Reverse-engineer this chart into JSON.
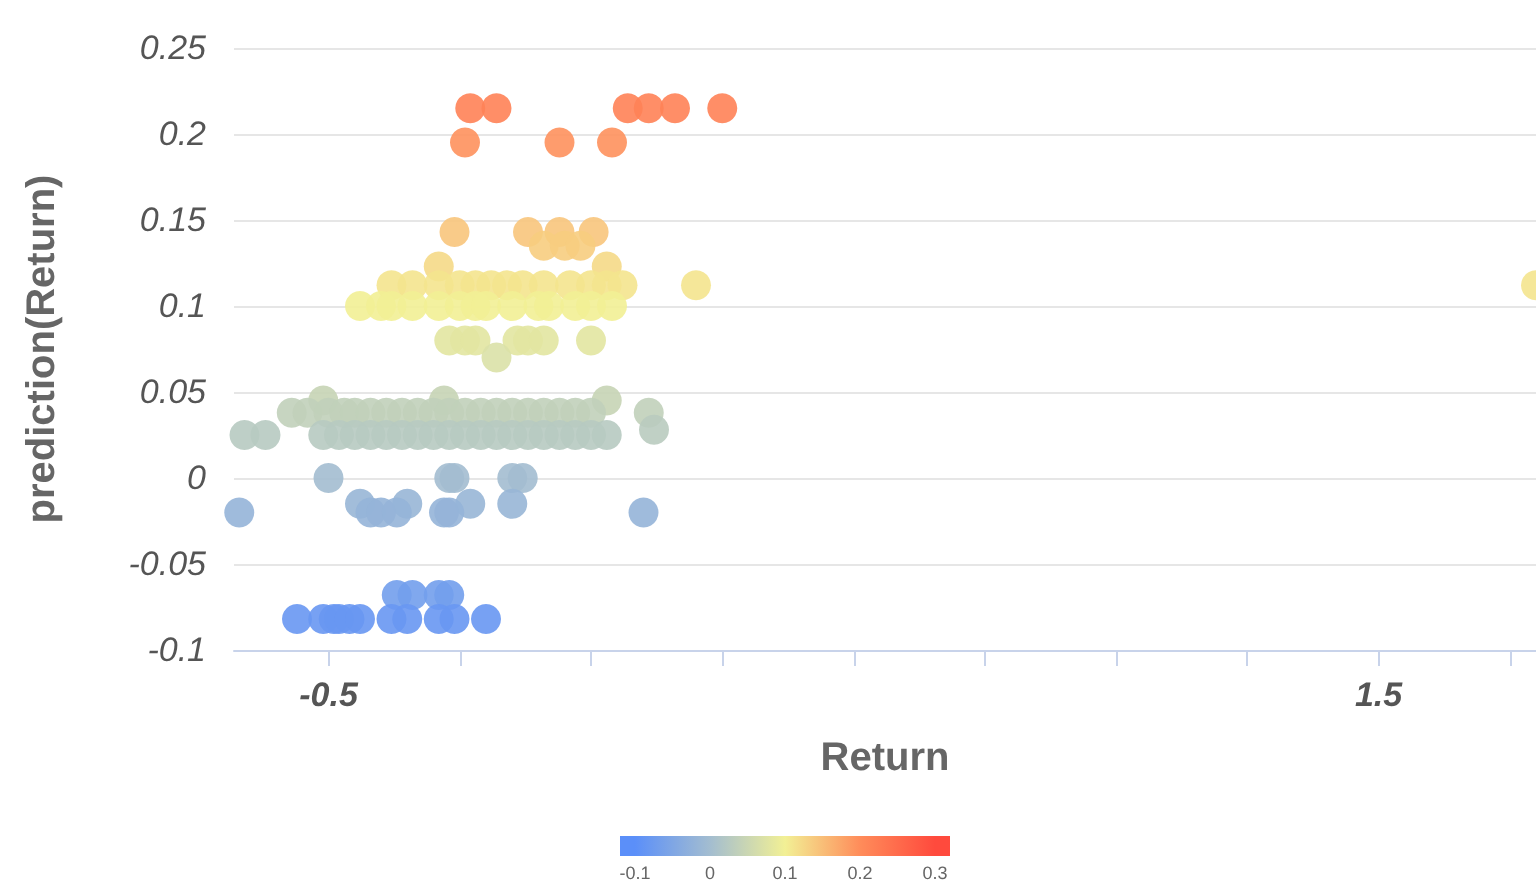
{
  "chart_data": {
    "type": "scatter",
    "xlabel": "Return",
    "ylabel": "prediction(Return)",
    "xlim": [
      -0.68,
      1.8
    ],
    "ylim": [
      -0.1,
      0.25
    ],
    "xticks": [
      {
        "value": -0.5,
        "label": "-0.5"
      },
      {
        "value": -0.25,
        "label": null
      },
      {
        "value": 0,
        "label": null
      },
      {
        "value": 0.25,
        "label": null
      },
      {
        "value": 0.5,
        "label": null
      },
      {
        "value": 0.75,
        "label": null
      },
      {
        "value": 1,
        "label": null
      },
      {
        "value": 1.25,
        "label": null
      },
      {
        "value": 1.5,
        "label": "1.5"
      },
      {
        "value": 1.75,
        "label": null
      }
    ],
    "yticks": [
      -0.1,
      -0.05,
      0,
      0.05,
      0.1,
      0.15,
      0.2,
      0.25
    ],
    "clim": [
      -0.12,
      0.32
    ],
    "cticks": [
      -0.1,
      0,
      0.1,
      0.2,
      0.3
    ],
    "grid": "y",
    "marker": "circle",
    "x": [
      -0.23,
      -0.18,
      0.07,
      0.11,
      0.16,
      0.25,
      -0.24,
      -0.06,
      0.04,
      -0.26,
      -0.12,
      -0.06,
      0.005,
      -0.09,
      -0.05,
      -0.02,
      -0.29,
      0.03,
      -0.38,
      -0.34,
      -0.29,
      -0.25,
      -0.22,
      -0.19,
      -0.16,
      -0.13,
      -0.09,
      -0.04,
      0.0,
      0.03,
      0.06,
      0.2,
      1.8,
      -0.44,
      -0.4,
      -0.38,
      -0.34,
      -0.29,
      -0.25,
      -0.22,
      -0.2,
      -0.15,
      -0.1,
      -0.08,
      -0.03,
      0.0,
      0.04,
      -0.27,
      -0.24,
      -0.22,
      -0.14,
      -0.12,
      -0.09,
      0.0,
      -0.18,
      -0.51,
      -0.28,
      0.03,
      0.11,
      -0.57,
      -0.54,
      -0.5,
      -0.47,
      -0.45,
      -0.42,
      -0.39,
      -0.36,
      -0.33,
      -0.3,
      -0.27,
      -0.24,
      -0.21,
      -0.18,
      -0.15,
      -0.12,
      -0.09,
      -0.06,
      -0.03,
      0.0,
      -0.66,
      -0.62,
      -0.51,
      -0.48,
      -0.45,
      -0.42,
      -0.39,
      -0.36,
      -0.33,
      -0.3,
      -0.27,
      -0.24,
      -0.21,
      -0.18,
      -0.15,
      -0.12,
      -0.09,
      -0.06,
      -0.03,
      0.0,
      0.03,
      0.12,
      -0.5,
      -0.27,
      -0.26,
      -0.15,
      -0.13,
      -0.44,
      -0.35,
      -0.23,
      -0.15,
      -0.67,
      -0.42,
      -0.4,
      -0.37,
      -0.28,
      -0.27,
      0.1,
      -0.37,
      -0.34,
      -0.29,
      -0.27,
      -0.56,
      -0.51,
      -0.49,
      -0.48,
      -0.46,
      -0.44,
      -0.38,
      -0.35,
      -0.29,
      -0.26,
      -0.2
    ],
    "values": [
      0.215,
      0.215,
      0.215,
      0.215,
      0.215,
      0.215,
      0.195,
      0.195,
      0.195,
      0.143,
      0.143,
      0.143,
      0.143,
      0.135,
      0.135,
      0.135,
      0.123,
      0.123,
      0.112,
      0.112,
      0.112,
      0.112,
      0.112,
      0.112,
      0.112,
      0.112,
      0.112,
      0.112,
      0.112,
      0.112,
      0.112,
      0.112,
      0.112,
      0.1,
      0.1,
      0.1,
      0.1,
      0.1,
      0.1,
      0.1,
      0.1,
      0.1,
      0.1,
      0.1,
      0.1,
      0.1,
      0.1,
      0.08,
      0.08,
      0.08,
      0.08,
      0.08,
      0.08,
      0.08,
      0.07,
      0.045,
      0.045,
      0.045,
      0.038,
      0.038,
      0.038,
      0.038,
      0.038,
      0.038,
      0.038,
      0.038,
      0.038,
      0.038,
      0.038,
      0.038,
      0.038,
      0.038,
      0.038,
      0.038,
      0.038,
      0.038,
      0.038,
      0.038,
      0.038,
      0.025,
      0.025,
      0.025,
      0.025,
      0.025,
      0.025,
      0.025,
      0.025,
      0.025,
      0.025,
      0.025,
      0.025,
      0.025,
      0.025,
      0.025,
      0.025,
      0.025,
      0.025,
      0.025,
      0.025,
      0.025,
      0.028,
      0,
      0,
      0,
      0,
      0,
      -0.015,
      -0.015,
      -0.015,
      -0.015,
      -0.02,
      -0.02,
      -0.02,
      -0.02,
      -0.02,
      -0.02,
      -0.02,
      -0.068,
      -0.068,
      -0.068,
      -0.068,
      -0.082,
      -0.082,
      -0.082,
      -0.082,
      -0.082,
      -0.082,
      -0.082,
      -0.082,
      -0.082,
      -0.082,
      -0.082
    ],
    "cvalues": [
      0.215,
      0.215,
      0.215,
      0.215,
      0.215,
      0.215,
      0.195,
      0.195,
      0.195,
      0.143,
      0.143,
      0.143,
      0.143,
      0.135,
      0.135,
      0.135,
      0.123,
      0.123,
      0.112,
      0.112,
      0.112,
      0.112,
      0.112,
      0.112,
      0.112,
      0.112,
      0.112,
      0.112,
      0.112,
      0.112,
      0.112,
      0.112,
      0.112,
      0.1,
      0.1,
      0.1,
      0.1,
      0.1,
      0.1,
      0.1,
      0.1,
      0.1,
      0.1,
      0.1,
      0.1,
      0.1,
      0.1,
      0.08,
      0.08,
      0.08,
      0.08,
      0.08,
      0.08,
      0.08,
      0.07,
      0.045,
      0.045,
      0.045,
      0.038,
      0.038,
      0.038,
      0.038,
      0.038,
      0.038,
      0.038,
      0.038,
      0.038,
      0.038,
      0.038,
      0.038,
      0.038,
      0.038,
      0.038,
      0.038,
      0.038,
      0.038,
      0.038,
      0.038,
      0.038,
      0.025,
      0.025,
      0.025,
      0.025,
      0.025,
      0.025,
      0.025,
      0.025,
      0.025,
      0.025,
      0.025,
      0.025,
      0.025,
      0.025,
      0.025,
      0.025,
      0.025,
      0.025,
      0.025,
      0.025,
      0.025,
      0.028,
      0,
      0,
      0,
      0,
      0,
      -0.015,
      -0.015,
      -0.015,
      -0.015,
      -0.02,
      -0.02,
      -0.02,
      -0.02,
      -0.02,
      -0.02,
      -0.02,
      -0.068,
      -0.068,
      -0.068,
      -0.068,
      -0.082,
      -0.082,
      -0.082,
      -0.082,
      -0.082,
      -0.082,
      -0.082,
      -0.082,
      -0.082,
      -0.082,
      -0.082
    ]
  }
}
